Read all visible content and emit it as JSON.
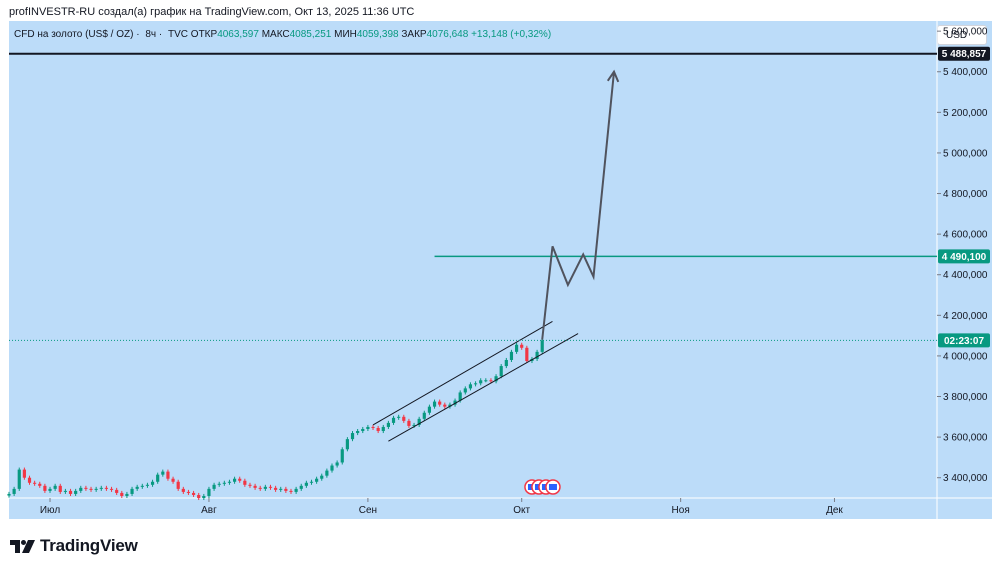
{
  "attribution": "profINVESTR-RU создал(а) график на TradingView.com, Окт 13, 2025 11:36 UTC",
  "legend": {
    "symbol": "CFD на золото (US$ / OZ)",
    "interval": "8ч",
    "source": "TVC",
    "open_label": "ОТКР",
    "open_value": "4063,597",
    "high_label": "МАКС",
    "high_value": "4085,251",
    "low_label": "МИН",
    "low_value": "4059,398",
    "close_label": "ЗАКР",
    "close_value": "4076,648",
    "change": "+13,148 (+0,32%)"
  },
  "currency_badge": "USD",
  "brand": "TradingView",
  "colors": {
    "background": "#bcdcf9",
    "up": "#089981",
    "down": "#f23645",
    "teal_level": "#089981",
    "black_level": "#131722",
    "projection": "#50535e"
  },
  "chart_data": {
    "type": "candlestick",
    "symbol": "CFD на золото (US$ / OZ)",
    "interval": "8h",
    "ylim": [
      3300,
      5650
    ],
    "y_ticks": [
      {
        "value": 3400,
        "label": "3 400,000"
      },
      {
        "value": 3600,
        "label": "3 600,000"
      },
      {
        "value": 3800,
        "label": "3 800,000"
      },
      {
        "value": 4000,
        "label": "4 000,000"
      },
      {
        "value": 4200,
        "label": "4 200,000"
      },
      {
        "value": 4400,
        "label": "4 400,000"
      },
      {
        "value": 4600,
        "label": "4 600,000"
      },
      {
        "value": 4800,
        "label": "4 800,000"
      },
      {
        "value": 5000,
        "label": "5 000,000"
      },
      {
        "value": 5200,
        "label": "5 200,000"
      },
      {
        "value": 5400,
        "label": "5 400,000"
      },
      {
        "value": 5600,
        "label": "5 600,000"
      }
    ],
    "xlim": [
      -8,
      173
    ],
    "x_ticks": [
      {
        "day": 0,
        "label": "Июл"
      },
      {
        "day": 31,
        "label": "Авг"
      },
      {
        "day": 62,
        "label": "Сен"
      },
      {
        "day": 92,
        "label": "Окт"
      },
      {
        "day": 123,
        "label": "Ноя"
      },
      {
        "day": 153,
        "label": "Дек"
      }
    ],
    "series": [
      {
        "name": "close",
        "points": [
          [
            -8,
            3320
          ],
          [
            -7,
            3345
          ],
          [
            -6,
            3440
          ],
          [
            -5,
            3400
          ],
          [
            -4,
            3375
          ],
          [
            -3,
            3370
          ],
          [
            -2,
            3360
          ],
          [
            -1,
            3335
          ],
          [
            0,
            3345
          ],
          [
            1,
            3360
          ],
          [
            2,
            3330
          ],
          [
            3,
            3335
          ],
          [
            4,
            3320
          ],
          [
            5,
            3335
          ],
          [
            6,
            3350
          ],
          [
            7,
            3345
          ],
          [
            8,
            3340
          ],
          [
            9,
            3345
          ],
          [
            10,
            3350
          ],
          [
            11,
            3345
          ],
          [
            12,
            3340
          ],
          [
            13,
            3325
          ],
          [
            14,
            3310
          ],
          [
            15,
            3320
          ],
          [
            16,
            3345
          ],
          [
            17,
            3355
          ],
          [
            18,
            3360
          ],
          [
            19,
            3365
          ],
          [
            20,
            3380
          ],
          [
            21,
            3415
          ],
          [
            22,
            3430
          ],
          [
            23,
            3395
          ],
          [
            24,
            3380
          ],
          [
            25,
            3345
          ],
          [
            26,
            3330
          ],
          [
            27,
            3325
          ],
          [
            28,
            3315
          ],
          [
            29,
            3300
          ],
          [
            30,
            3310
          ],
          [
            31,
            3345
          ],
          [
            32,
            3365
          ],
          [
            33,
            3370
          ],
          [
            34,
            3375
          ],
          [
            35,
            3380
          ],
          [
            36,
            3395
          ],
          [
            37,
            3385
          ],
          [
            38,
            3365
          ],
          [
            39,
            3360
          ],
          [
            40,
            3350
          ],
          [
            41,
            3345
          ],
          [
            42,
            3355
          ],
          [
            43,
            3350
          ],
          [
            44,
            3340
          ],
          [
            45,
            3345
          ],
          [
            46,
            3335
          ],
          [
            47,
            3330
          ],
          [
            48,
            3345
          ],
          [
            49,
            3360
          ],
          [
            50,
            3375
          ],
          [
            51,
            3380
          ],
          [
            52,
            3395
          ],
          [
            53,
            3410
          ],
          [
            54,
            3435
          ],
          [
            55,
            3460
          ],
          [
            56,
            3475
          ],
          [
            57,
            3540
          ],
          [
            58,
            3590
          ],
          [
            59,
            3620
          ],
          [
            60,
            3630
          ],
          [
            61,
            3640
          ],
          [
            62,
            3650
          ],
          [
            63,
            3645
          ],
          [
            64,
            3630
          ],
          [
            65,
            3650
          ],
          [
            66,
            3670
          ],
          [
            67,
            3695
          ],
          [
            68,
            3700
          ],
          [
            69,
            3680
          ],
          [
            70,
            3655
          ],
          [
            71,
            3660
          ],
          [
            72,
            3690
          ],
          [
            73,
            3720
          ],
          [
            74,
            3750
          ],
          [
            75,
            3775
          ],
          [
            76,
            3760
          ],
          [
            77,
            3750
          ],
          [
            78,
            3760
          ],
          [
            79,
            3780
          ],
          [
            80,
            3820
          ],
          [
            81,
            3840
          ],
          [
            82,
            3860
          ],
          [
            83,
            3865
          ],
          [
            84,
            3880
          ],
          [
            85,
            3880
          ],
          [
            86,
            3875
          ],
          [
            87,
            3900
          ],
          [
            88,
            3950
          ],
          [
            89,
            3980
          ],
          [
            90,
            4020
          ],
          [
            91,
            4055
          ],
          [
            92,
            4040
          ],
          [
            93,
            3975
          ],
          [
            94,
            3985
          ],
          [
            95,
            4020
          ],
          [
            96,
            4076.648
          ]
        ]
      },
      {
        "name": "Projection",
        "points": [
          [
            96,
            4080
          ],
          [
            98,
            4540
          ],
          [
            101,
            4350
          ],
          [
            104,
            4500
          ],
          [
            106,
            4390
          ],
          [
            110,
            5400
          ]
        ]
      }
    ],
    "channel": {
      "upper": [
        [
          63,
          3660
        ],
        [
          98,
          4170
        ]
      ],
      "lower": [
        [
          66,
          3580
        ],
        [
          103,
          4110
        ]
      ]
    },
    "horizontal_levels": [
      {
        "name": "Resistance",
        "value": 5488.857,
        "label": "5 488,857"
      },
      {
        "name": "Target",
        "value": 4490.1,
        "label": "4 490,100"
      }
    ],
    "current_price": {
      "value": 4076.648,
      "label": "02:23:07"
    }
  }
}
